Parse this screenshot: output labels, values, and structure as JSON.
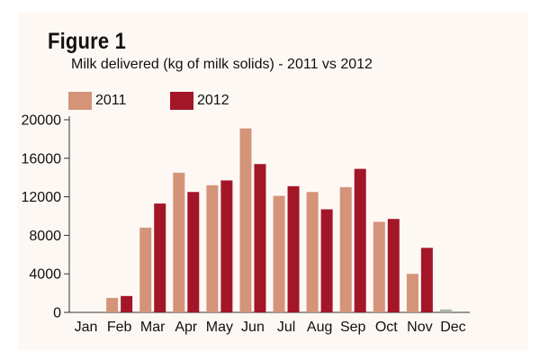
{
  "figure_label": "Figure 1",
  "subtitle": "Milk delivered (kg of milk solids)  - 2011 vs 2012",
  "colors": {
    "background": "#fdf8f4",
    "series_2011": "#d4947a",
    "series_2012": "#a31628",
    "dec_2011": "#a9b5a6"
  },
  "chart_data": {
    "type": "bar",
    "title": "Figure 1",
    "subtitle": "Milk delivered (kg of milk solids)  - 2011 vs 2012",
    "categories": [
      "Jan",
      "Feb",
      "Mar",
      "Apr",
      "May",
      "Jun",
      "Jul",
      "Aug",
      "Sep",
      "Oct",
      "Nov",
      "Dec"
    ],
    "series": [
      {
        "name": "2011",
        "values": [
          0,
          1500,
          8800,
          14500,
          13200,
          19100,
          12100,
          12500,
          13000,
          9400,
          4000,
          300
        ]
      },
      {
        "name": "2012",
        "values": [
          0,
          1700,
          11300,
          12500,
          13700,
          15400,
          13100,
          10700,
          14900,
          9700,
          6700,
          0
        ]
      }
    ],
    "yticks": [
      "0",
      "4000",
      "8000",
      "12000",
      "16000",
      "20000"
    ],
    "ylim": [
      0,
      20000
    ],
    "xlabel": "",
    "ylabel": "",
    "grid": false,
    "legend": "top-left"
  }
}
